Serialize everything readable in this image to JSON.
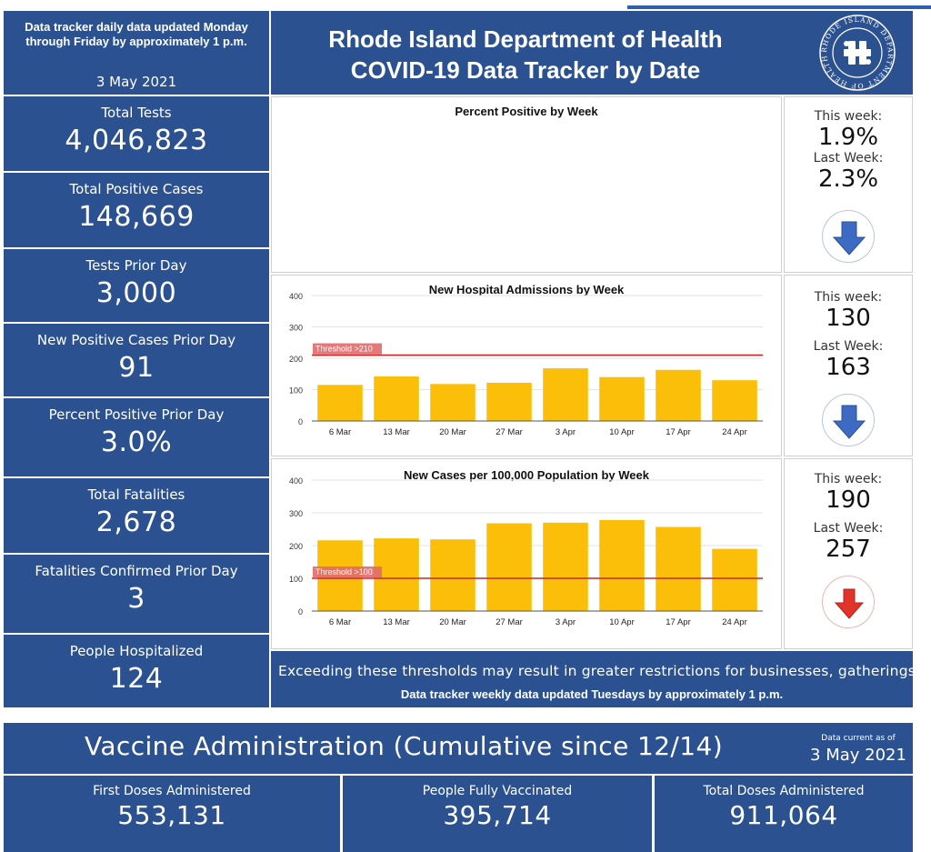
{
  "header": {
    "update_note": "Data tracker daily data updated Monday through Friday by approximately 1 p.m.",
    "date": "3 May 2021",
    "title_line1": "Rhode Island Department of Health",
    "title_line2": "COVID-19 Data Tracker by Date",
    "seal_text": "RHODE ISLAND DEPARTMENT OF HEALTH"
  },
  "stats": [
    {
      "label": "Total Tests",
      "value": "4,046,823"
    },
    {
      "label": "Total Positive Cases",
      "value": "148,669"
    },
    {
      "label": "Tests Prior Day",
      "value": "3,000"
    },
    {
      "label": "New Positive Cases Prior Day",
      "value": "91"
    },
    {
      "label": "Percent Positive Prior Day",
      "value": "3.0%"
    },
    {
      "label": "Total Fatalities",
      "value": "2,678"
    },
    {
      "label": "Fatalities Confirmed Prior Day",
      "value": "3"
    },
    {
      "label": "People Hospitalized",
      "value": "124"
    }
  ],
  "weekly": [
    {
      "this_week_label": "This week:",
      "this_week": "1.9%",
      "last_week_label": "Last Week:",
      "last_week": "2.3%",
      "trend": "down",
      "trend_icon": "blue-down-arrow-icon",
      "color": "#3d6bc4"
    },
    {
      "this_week_label": "This week:",
      "this_week": "130",
      "last_week_label": "Last Week:",
      "last_week": "163",
      "trend": "down",
      "trend_icon": "blue-down-arrow-icon",
      "color": "#3d6bc4"
    },
    {
      "this_week_label": "This week:",
      "this_week": "190",
      "last_week_label": "Last Week:",
      "last_week": "257",
      "trend": "down",
      "trend_icon": "red-down-arrow-icon",
      "color": "#e0332a"
    }
  ],
  "chart_data": [
    {
      "type": "bar",
      "title": "Percent Positive by Week",
      "categories": [],
      "values": []
    },
    {
      "type": "bar",
      "title": "New Hospital Admissions by Week",
      "categories": [
        "6 Mar",
        "13 Mar",
        "20 Mar",
        "27 Mar",
        "3 Apr",
        "10 Apr",
        "17 Apr",
        "24 Apr"
      ],
      "values": [
        115,
        142,
        118,
        122,
        168,
        140,
        163,
        130
      ],
      "yticks": [
        0,
        100,
        200,
        300,
        400
      ],
      "ylim": [
        0,
        400
      ],
      "threshold": {
        "label": "Threshold >210",
        "value": 210
      },
      "bar_color": "#fbbf0a",
      "threshold_color": "#c62828",
      "grid": true
    },
    {
      "type": "bar",
      "title": "New Cases per 100,000 Population by Week",
      "categories": [
        "6 Mar",
        "13 Mar",
        "20 Mar",
        "27 Mar",
        "3 Apr",
        "10 Apr",
        "17 Apr",
        "24 Apr"
      ],
      "values": [
        216,
        222,
        219,
        268,
        270,
        278,
        257,
        190
      ],
      "yticks": [
        0,
        100,
        200,
        300,
        400
      ],
      "ylim": [
        0,
        400
      ],
      "threshold": {
        "label": "Threshold >100",
        "value": 100
      },
      "bar_color": "#fbbf0a",
      "threshold_color": "#c62828",
      "grid": true
    }
  ],
  "message": {
    "line1": "Exceeding these thresholds may result in greater restrictions for businesses, gatherings, e",
    "line2": "Data tracker weekly data updated Tuesdays by approximately 1 p.m."
  },
  "vaccine": {
    "title": "Vaccine Administration (Cumulative since 12/14)",
    "data_current_label": "Data current as of",
    "data_current_date": "3 May 2021",
    "items": [
      {
        "label": "First Doses Administered",
        "value": "553,131"
      },
      {
        "label": "People Fully Vaccinated",
        "value": "395,714"
      },
      {
        "label": "Total Doses Administered",
        "value": "911,064"
      }
    ]
  },
  "colors": {
    "panel_blue": "#2b5190",
    "bar": "#fbbf0a",
    "threshold": "#c62828"
  }
}
